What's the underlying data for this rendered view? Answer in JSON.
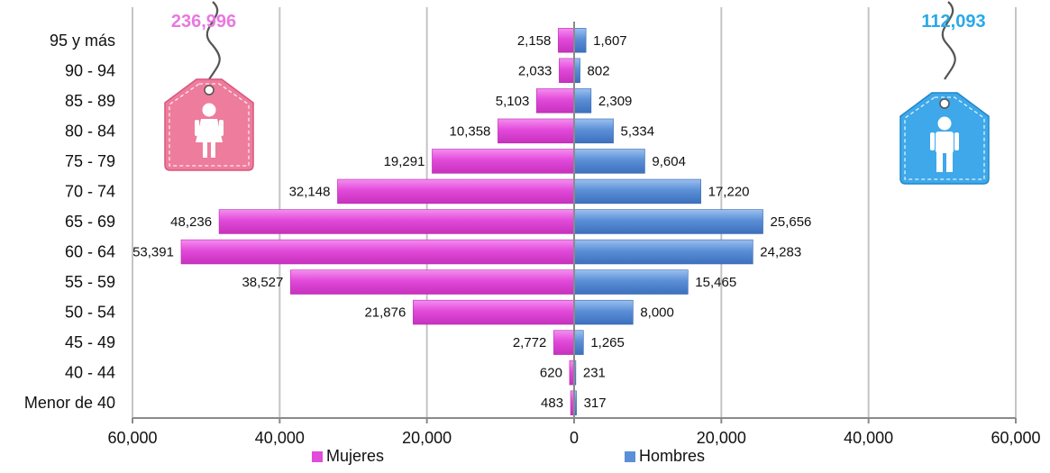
{
  "chart_data": {
    "type": "bar",
    "orientation": "horizontal-diverging",
    "categories": [
      "95 y más",
      "90 - 94",
      "85 - 89",
      "80 - 84",
      "75 - 79",
      "70 - 74",
      "65 - 69",
      "60 - 64",
      "55 - 59",
      "50 - 54",
      "45 - 49",
      "40 - 44",
      "Menor de 40"
    ],
    "series": [
      {
        "name": "Mujeres",
        "color": "#e24ad9",
        "side": "left",
        "values": [
          2158,
          2033,
          5103,
          10358,
          19291,
          32148,
          48236,
          53391,
          38527,
          21876,
          2772,
          620,
          483
        ],
        "value_labels": [
          "2,158",
          "2,033",
          "5,103",
          "10,358",
          "19,291",
          "32,148",
          "48,236",
          "53,391",
          "38,527",
          "21,876",
          "2,772",
          "620",
          "483"
        ],
        "total": "236,996",
        "total_color": "#e879e0",
        "icon": "female-price-tag-icon"
      },
      {
        "name": "Hombres",
        "color": "#5b8fd6",
        "side": "right",
        "values": [
          1607,
          802,
          2309,
          5334,
          9604,
          17220,
          25656,
          24283,
          15465,
          8000,
          1265,
          231,
          317
        ],
        "value_labels": [
          "1,607",
          "802",
          "2,309",
          "5,334",
          "9,604",
          "17,220",
          "25,656",
          "24,283",
          "15,465",
          "8,000",
          "1,265",
          "231",
          "317"
        ],
        "total": "112,093",
        "total_color": "#29a9e8",
        "icon": "male-price-tag-icon"
      }
    ],
    "x_ticks": [
      -60000,
      -40000,
      -20000,
      0,
      20000,
      40000,
      60000
    ],
    "x_tick_labels": [
      "60,000",
      "40,000",
      "20,000",
      "0",
      "20,000",
      "40,000",
      "60,000"
    ],
    "xlim": [
      -60000,
      60000
    ],
    "grid": "vertical",
    "legend": "bottom-center",
    "title": "",
    "xlabel": "",
    "ylabel": ""
  }
}
